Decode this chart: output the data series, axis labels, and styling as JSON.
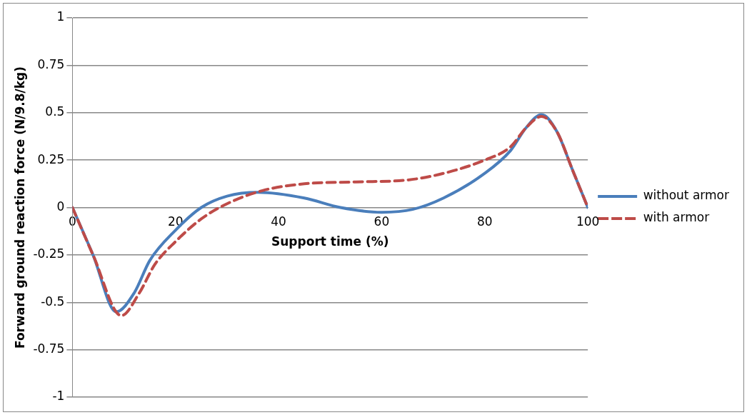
{
  "chart_data": {
    "type": "line",
    "xlabel": "Support time (%)",
    "ylabel": "Forward ground reaction force (N/9.8/kg)",
    "xlim": [
      0,
      100
    ],
    "xticks": [
      0,
      20,
      40,
      60,
      80,
      100
    ],
    "ylim": [
      -1,
      1
    ],
    "yticks": [
      -1,
      -0.75,
      -0.5,
      -0.25,
      0,
      0.25,
      0.5,
      0.75,
      1
    ],
    "grid": "y",
    "legend": "right",
    "marker": "none",
    "series": [
      {
        "name": "without armor",
        "color": "#4a7ebb",
        "line_style": "solid",
        "x": [
          0,
          4,
          8.5,
          12,
          15,
          20,
          25,
          30,
          36,
          45,
          52,
          60,
          66,
          72,
          80,
          85,
          88,
          91,
          94,
          97,
          100
        ],
        "values": [
          0,
          -0.25,
          -0.55,
          -0.45,
          -0.28,
          -0.12,
          0,
          0.06,
          0.08,
          0.05,
          0,
          -0.025,
          -0.01,
          0.05,
          0.18,
          0.3,
          0.42,
          0.49,
          0.4,
          0.2,
          0
        ]
      },
      {
        "name": "with armor",
        "color": "#be4b48",
        "line_style": "dashed",
        "x": [
          0,
          4,
          9.5,
          13,
          16,
          20,
          25,
          30,
          37,
          45,
          55,
          65,
          72,
          80,
          85,
          88,
          91,
          94,
          97,
          100
        ],
        "values": [
          0,
          -0.25,
          -0.57,
          -0.45,
          -0.3,
          -0.18,
          -0.06,
          0.02,
          0.09,
          0.125,
          0.135,
          0.145,
          0.18,
          0.25,
          0.32,
          0.42,
          0.48,
          0.4,
          0.2,
          0
        ]
      }
    ]
  }
}
